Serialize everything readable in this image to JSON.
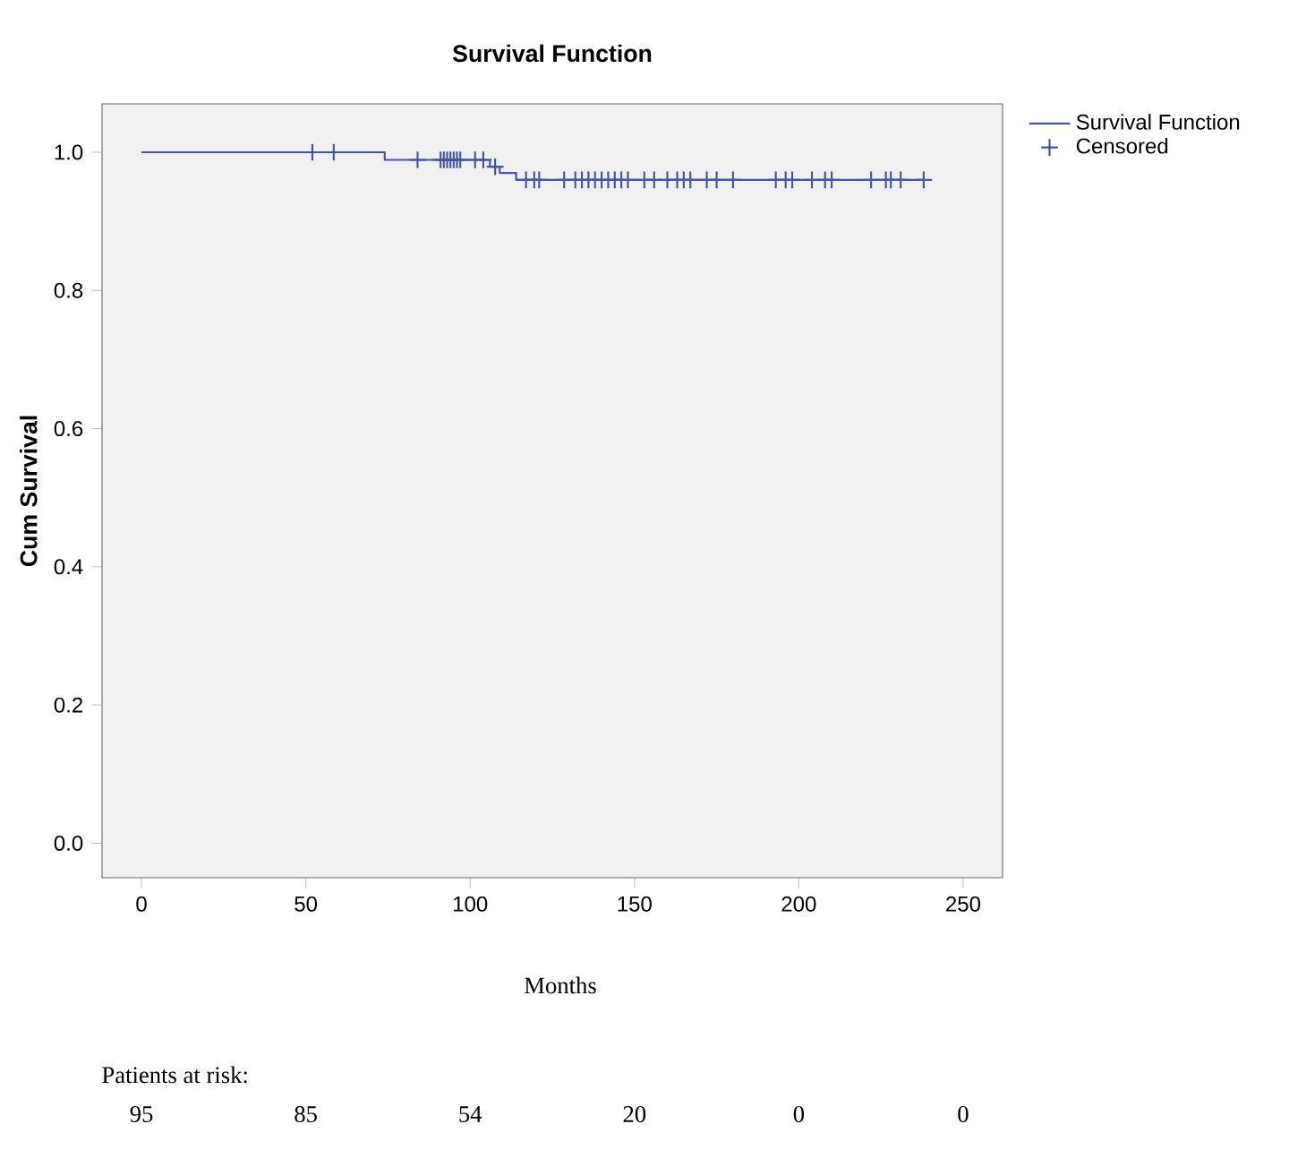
{
  "chart_data": {
    "type": "step",
    "title": "Survival Function",
    "xlabel": "Months",
    "ylabel": "Cum Survival",
    "xlim": [
      -12,
      262
    ],
    "ylim": [
      -0.05,
      1.07
    ],
    "xticks": [
      0,
      50,
      100,
      150,
      200,
      250
    ],
    "yticks": [
      {
        "value": 0,
        "label": "0.0"
      },
      {
        "value": 0.2,
        "label": "0.2"
      },
      {
        "value": 0.4,
        "label": "0.4"
      },
      {
        "value": 0.6,
        "label": "0.6"
      },
      {
        "value": 0.8,
        "label": "0.8"
      },
      {
        "value": 1,
        "label": "1.0"
      }
    ],
    "grid": false,
    "legend": "top right",
    "series": [
      {
        "name": "Survival Function",
        "color": "#4055a8",
        "marker": "none",
        "x": [
          0,
          74,
          106,
          109,
          114,
          238
        ],
        "values": [
          1,
          0.989,
          0.979,
          0.97,
          0.96,
          0.96
        ]
      },
      {
        "name": "Censored",
        "type": "scatter",
        "color": "#4055a8",
        "marker": "cross",
        "x": [
          52,
          58.5,
          84,
          91,
          92,
          93,
          94,
          95,
          96,
          97,
          101.5,
          104,
          107.6,
          117,
          119.5,
          121,
          128.6,
          132,
          134,
          136,
          138,
          140,
          142,
          144,
          146,
          148,
          153,
          156,
          160,
          163,
          165,
          167,
          172,
          175,
          180,
          193,
          196,
          198,
          204,
          208,
          210,
          222,
          226.5,
          228,
          231,
          238
        ],
        "values": [
          1,
          1,
          0.989,
          0.989,
          0.989,
          0.989,
          0.989,
          0.989,
          0.989,
          0.989,
          0.989,
          0.989,
          0.979,
          0.96,
          0.96,
          0.96,
          0.96,
          0.96,
          0.96,
          0.96,
          0.96,
          0.96,
          0.96,
          0.96,
          0.96,
          0.96,
          0.96,
          0.96,
          0.96,
          0.96,
          0.96,
          0.96,
          0.96,
          0.96,
          0.96,
          0.96,
          0.96,
          0.96,
          0.96,
          0.96,
          0.96,
          0.96,
          0.96,
          0.96,
          0.96,
          0.96
        ]
      }
    ],
    "annotations": [
      "Patients at risk:",
      "95",
      "85",
      "54",
      "20",
      "0",
      "0"
    ]
  }
}
